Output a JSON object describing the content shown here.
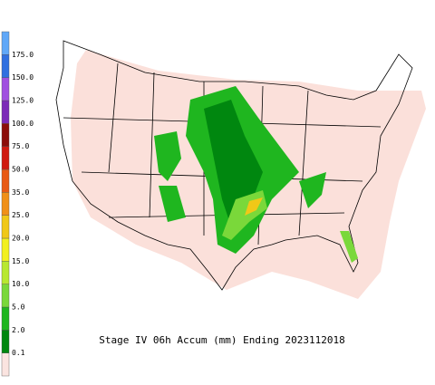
{
  "title": "Stage IV 06h Accum (mm) Ending 2023112018",
  "legend": {
    "labels": [
      "0.1",
      "2.0",
      "5.0",
      "10.0",
      "15.0",
      "20.0",
      "25.0",
      "35.0",
      "50.0",
      "75.0",
      "100.0",
      "125.0",
      "150.0",
      "175.0"
    ],
    "colors": [
      "#fbe4e0",
      "#00870f",
      "#1fb61f",
      "#7ad83a",
      "#b8e830",
      "#f2f020",
      "#f0c818",
      "#f09018",
      "#e85a14",
      "#d01a10",
      "#8c0e0a",
      "#7c2ab8",
      "#a050e0",
      "#3070e0",
      "#60a8f8"
    ]
  }
}
